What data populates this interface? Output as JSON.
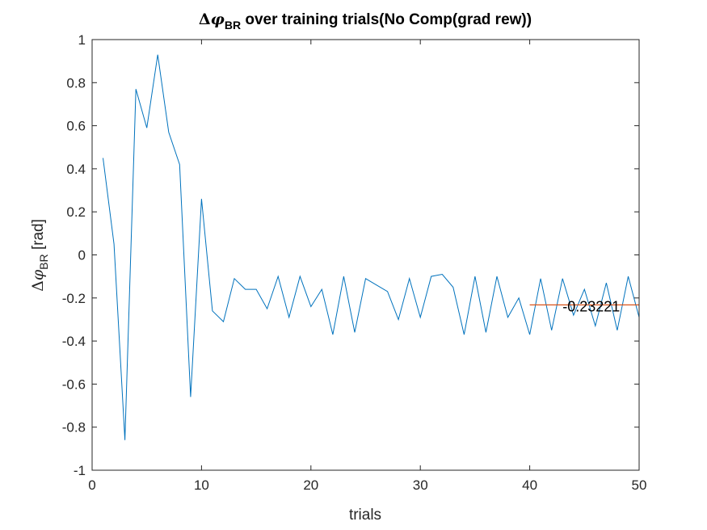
{
  "chart_data": {
    "type": "line",
    "title": {
      "delta": "Δ",
      "phi": "φ",
      "subscript": "BR",
      "rest": " over training trials(No Comp(grad rew))"
    },
    "xlabel": "trials",
    "ylabel": {
      "delta": "Δ",
      "phi": "φ",
      "subscript": "BR",
      "rest": " [rad]"
    },
    "xlim": [
      0,
      50
    ],
    "ylim": [
      -1,
      1
    ],
    "xticks": [
      0,
      10,
      20,
      30,
      40,
      50
    ],
    "yticks": [
      -1,
      -0.8,
      -0.6,
      -0.4,
      -0.2,
      0,
      0.2,
      0.4,
      0.6,
      0.8,
      1
    ],
    "xtick_labels": [
      "0",
      "10",
      "20",
      "30",
      "40",
      "50"
    ],
    "ytick_labels": [
      "-1",
      "-0.8",
      "-0.6",
      "-0.4",
      "-0.2",
      "0",
      "0.2",
      "0.4",
      "0.6",
      "0.8",
      "1"
    ],
    "grid": false,
    "series": [
      {
        "color": "#0072BD",
        "x": [
          1,
          2,
          3,
          4,
          5,
          6,
          7,
          8,
          9,
          10,
          11,
          12,
          13,
          14,
          15,
          16,
          17,
          18,
          19,
          20,
          21,
          22,
          23,
          24,
          25,
          26,
          27,
          28,
          29,
          30,
          31,
          32,
          33,
          34,
          35,
          36,
          37,
          38,
          39,
          40,
          41,
          42,
          43,
          44,
          45,
          46,
          47,
          48,
          49,
          50
        ],
        "y": [
          0.45,
          0.05,
          -0.86,
          0.77,
          0.59,
          0.93,
          0.57,
          0.42,
          -0.66,
          0.26,
          -0.26,
          -0.31,
          -0.11,
          -0.16,
          -0.16,
          -0.25,
          -0.1,
          -0.29,
          -0.1,
          -0.24,
          -0.16,
          -0.37,
          -0.1,
          -0.36,
          -0.11,
          -0.14,
          -0.17,
          -0.3,
          -0.11,
          -0.29,
          -0.1,
          -0.09,
          -0.15,
          -0.37,
          -0.1,
          -0.36,
          -0.1,
          -0.29,
          -0.2,
          -0.37,
          -0.11,
          -0.35,
          -0.11,
          -0.28,
          -0.16,
          -0.33,
          -0.13,
          -0.35,
          -0.1,
          -0.29
        ]
      }
    ],
    "mean_line": {
      "color": "#D95319",
      "x_start": 40,
      "x_end": 50,
      "value": -0.23221,
      "label": "-0.23221",
      "label_x": 43,
      "label_y": -0.24
    }
  }
}
